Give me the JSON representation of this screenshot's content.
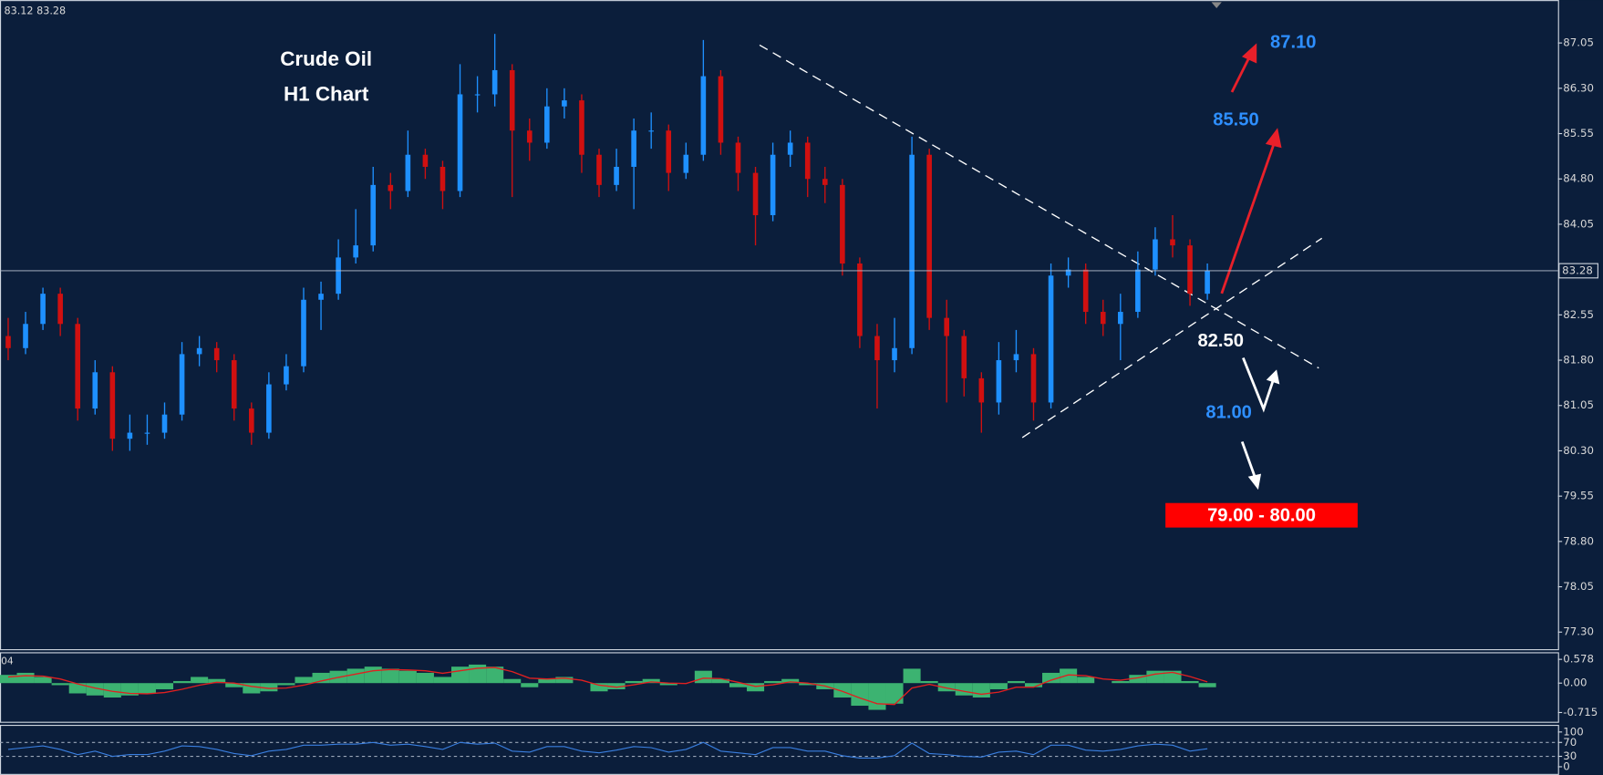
{
  "header": "83.12 83.28",
  "chart_data": [
    {
      "type": "candlestick",
      "title": "Crude Oil",
      "subtitle": "H1 Chart",
      "up_color": "#1e90ff",
      "down_color": "#d01010",
      "open": [
        82.2,
        82.0,
        82.4,
        82.9,
        82.4,
        81.0,
        81.6,
        80.5,
        80.6,
        80.6,
        80.9,
        81.9,
        82.0,
        81.8,
        81.0,
        80.6,
        81.4,
        81.7,
        82.8,
        82.9,
        83.5,
        83.7,
        84.7,
        84.6,
        85.2,
        85.0,
        84.6,
        86.2,
        86.2,
        86.6,
        85.6,
        85.4,
        86.0,
        86.1,
        85.2,
        84.7,
        85.0,
        85.6,
        85.6,
        84.9,
        85.2,
        86.5,
        85.4,
        84.9,
        84.2,
        85.2,
        85.4,
        84.8,
        84.7,
        83.4,
        82.2,
        81.8,
        82.0,
        85.2,
        82.5,
        82.2,
        81.5,
        81.1,
        81.8,
        81.9,
        81.1,
        83.2,
        83.3,
        82.6,
        82.4,
        82.6,
        83.3,
        83.8,
        83.7,
        82.9
      ],
      "high": [
        82.5,
        82.6,
        83.0,
        83.0,
        82.5,
        81.8,
        81.7,
        80.9,
        80.9,
        81.1,
        82.1,
        82.2,
        82.1,
        81.9,
        81.1,
        81.6,
        81.9,
        83.0,
        83.1,
        83.8,
        84.3,
        85.0,
        84.9,
        85.6,
        85.3,
        85.1,
        86.7,
        86.5,
        87.2,
        86.7,
        85.8,
        86.3,
        86.3,
        86.2,
        85.3,
        85.3,
        85.8,
        85.9,
        85.7,
        85.4,
        87.1,
        86.6,
        85.5,
        85.0,
        85.4,
        85.6,
        85.5,
        85.0,
        84.8,
        83.5,
        82.4,
        82.5,
        85.5,
        85.3,
        82.8,
        82.3,
        81.6,
        82.1,
        82.3,
        82.0,
        83.4,
        83.5,
        83.4,
        82.8,
        82.9,
        83.6,
        84.0,
        84.2,
        83.8,
        83.4
      ],
      "low": [
        81.8,
        81.9,
        82.3,
        82.2,
        80.8,
        80.9,
        80.3,
        80.3,
        80.4,
        80.5,
        80.8,
        81.7,
        81.6,
        80.8,
        80.4,
        80.5,
        81.3,
        81.6,
        82.3,
        82.8,
        83.4,
        83.6,
        84.3,
        84.5,
        84.8,
        84.3,
        84.5,
        85.9,
        86.0,
        84.5,
        85.1,
        85.3,
        85.8,
        84.9,
        84.5,
        84.6,
        84.3,
        85.3,
        84.6,
        84.8,
        85.1,
        85.2,
        84.6,
        83.7,
        84.1,
        85.0,
        84.5,
        84.4,
        83.2,
        82.0,
        81.0,
        81.6,
        81.9,
        82.3,
        81.1,
        81.2,
        80.6,
        80.9,
        81.6,
        80.8,
        81.0,
        83.0,
        82.4,
        82.2,
        81.8,
        82.5,
        83.2,
        83.5,
        82.7,
        82.8
      ],
      "close": [
        82.0,
        82.4,
        82.9,
        82.4,
        81.0,
        81.6,
        80.5,
        80.6,
        80.6,
        80.9,
        81.9,
        82.0,
        81.8,
        81.0,
        80.6,
        81.4,
        81.7,
        82.8,
        82.9,
        83.5,
        83.7,
        84.7,
        84.6,
        85.2,
        85.0,
        84.6,
        86.2,
        86.2,
        86.6,
        85.6,
        85.4,
        86.0,
        86.1,
        85.2,
        84.7,
        85.0,
        85.6,
        85.6,
        84.9,
        85.2,
        86.5,
        85.4,
        84.9,
        84.2,
        85.2,
        85.4,
        84.8,
        84.7,
        83.4,
        82.2,
        81.8,
        82.0,
        85.2,
        82.5,
        82.2,
        81.5,
        81.1,
        81.8,
        81.9,
        81.1,
        83.2,
        83.3,
        82.6,
        82.4,
        82.6,
        83.3,
        83.8,
        83.7,
        82.9,
        83.28
      ],
      "current_price": 83.28,
      "ylim": [
        77.0,
        87.76
      ],
      "yticks": [
        87.05,
        {
          "value": 86.3,
          "label": "86.30"
        },
        85.55,
        {
          "value": 84.8,
          "label": "84.80"
        },
        84.05,
        82.55,
        {
          "value": 81.8,
          "label": "81.80"
        },
        81.05,
        {
          "value": 80.3,
          "label": "80.30"
        },
        79.55,
        {
          "value": 78.8,
          "label": "78.80"
        },
        78.05,
        {
          "value": 77.3,
          "label": "77.30"
        }
      ],
      "annotations": [
        "87.10",
        "85.50",
        "82.50",
        "81.00",
        "79.00 - 80.00"
      ]
    },
    {
      "type": "macd",
      "label": "04",
      "color": "#3cb371",
      "signal_color": "#e02020",
      "values": [
        0.2,
        0.25,
        0.15,
        -0.05,
        -0.25,
        -0.3,
        -0.35,
        -0.3,
        -0.25,
        -0.15,
        0.05,
        0.15,
        0.1,
        -0.1,
        -0.25,
        -0.2,
        -0.05,
        0.15,
        0.25,
        0.3,
        0.35,
        0.4,
        0.35,
        0.3,
        0.25,
        0.15,
        0.4,
        0.45,
        0.4,
        0.1,
        -0.1,
        0.1,
        0.15,
        0.0,
        -0.2,
        -0.15,
        0.05,
        0.1,
        -0.05,
        0.0,
        0.3,
        0.1,
        -0.1,
        -0.2,
        0.05,
        0.1,
        -0.05,
        -0.15,
        -0.35,
        -0.55,
        -0.65,
        -0.5,
        0.35,
        0.05,
        -0.2,
        -0.3,
        -0.35,
        -0.15,
        0.05,
        -0.1,
        0.25,
        0.35,
        0.15,
        0.0,
        0.05,
        0.2,
        0.3,
        0.3,
        0.05,
        -0.1
      ],
      "signal": [
        0.15,
        0.18,
        0.17,
        0.1,
        -0.02,
        -0.12,
        -0.2,
        -0.25,
        -0.26,
        -0.23,
        -0.15,
        -0.05,
        0.02,
        0.0,
        -0.08,
        -0.13,
        -0.12,
        -0.05,
        0.05,
        0.14,
        0.22,
        0.3,
        0.33,
        0.32,
        0.3,
        0.24,
        0.3,
        0.36,
        0.38,
        0.28,
        0.12,
        0.1,
        0.12,
        0.07,
        -0.05,
        -0.1,
        -0.04,
        0.03,
        0.0,
        -0.01,
        0.12,
        0.11,
        0.02,
        -0.08,
        -0.04,
        0.03,
        0.0,
        -0.07,
        -0.2,
        -0.36,
        -0.5,
        -0.52,
        -0.12,
        -0.03,
        -0.12,
        -0.2,
        -0.27,
        -0.22,
        -0.1,
        -0.1,
        0.07,
        0.2,
        0.18,
        0.1,
        0.07,
        0.13,
        0.22,
        0.26,
        0.16,
        0.03
      ],
      "ylim": [
        -0.94,
        0.75
      ],
      "yticks": [
        0.578,
        {
          "value": 0,
          "label": "0.00"
        },
        -0.715
      ]
    },
    {
      "type": "line",
      "color": "#3a7fe0",
      "values": [
        50,
        55,
        60,
        50,
        35,
        45,
        30,
        35,
        35,
        45,
        60,
        58,
        50,
        38,
        32,
        45,
        50,
        62,
        62,
        65,
        65,
        70,
        62,
        65,
        58,
        50,
        70,
        65,
        68,
        45,
        42,
        58,
        58,
        45,
        40,
        48,
        58,
        55,
        42,
        50,
        70,
        45,
        40,
        35,
        55,
        55,
        45,
        45,
        32,
        25,
        25,
        32,
        68,
        38,
        35,
        30,
        28,
        42,
        45,
        35,
        62,
        62,
        48,
        45,
        50,
        60,
        65,
        62,
        45,
        52
      ],
      "ylim": [
        -23.5,
        120.6
      ],
      "yticks": [
        100,
        70,
        30,
        0
      ]
    }
  ]
}
